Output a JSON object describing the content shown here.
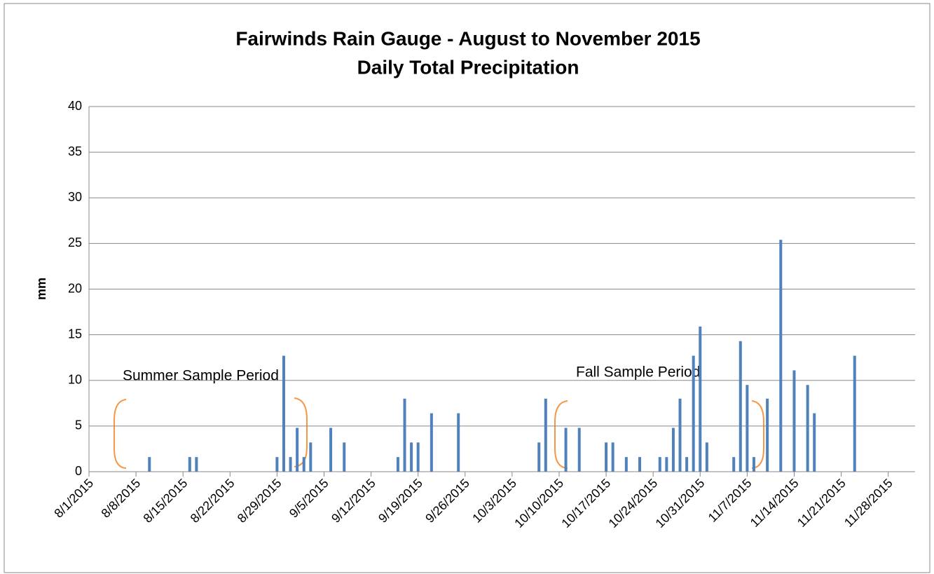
{
  "chart_data": {
    "type": "bar",
    "title": "Fairwinds Rain Gauge - August to November 2015",
    "subtitle": "Daily Total Precipitation",
    "y_label": "mm",
    "annotations": [
      "Summer Sample Period",
      "Fall Sample Period"
    ],
    "x": [
      "8/10/2015",
      "8/16/2015",
      "8/17/2015",
      "8/29/2015",
      "8/30/2015",
      "8/31/2015",
      "9/1/2015",
      "9/2/2015",
      "9/3/2015",
      "9/6/2015",
      "9/8/2015",
      "9/16/2015",
      "9/17/2015",
      "9/18/2015",
      "9/19/2015",
      "9/21/2015",
      "9/25/2015",
      "10/7/2015",
      "10/8/2015",
      "10/11/2015",
      "10/13/2015",
      "10/17/2015",
      "10/18/2015",
      "10/20/2015",
      "10/22/2015",
      "10/25/2015",
      "10/26/2015",
      "10/27/2015",
      "10/28/2015",
      "10/29/2015",
      "10/30/2015",
      "10/31/2015",
      "11/1/2015",
      "11/5/2015",
      "11/6/2015",
      "11/7/2015",
      "11/8/2015",
      "11/10/2015",
      "11/12/2015",
      "11/14/2015",
      "11/16/2015",
      "11/17/2015",
      "11/23/2015"
    ],
    "values": [
      1.6,
      1.6,
      1.6,
      1.6,
      12.7,
      1.6,
      4.8,
      1.6,
      3.2,
      4.8,
      3.2,
      1.6,
      8,
      3.2,
      3.2,
      6.4,
      6.4,
      3.2,
      8,
      4.8,
      4.8,
      3.2,
      3.2,
      1.6,
      1.6,
      1.6,
      1.6,
      4.8,
      8,
      1.6,
      12.7,
      15.9,
      3.2,
      1.6,
      14.3,
      9.5,
      1.6,
      8,
      25.4,
      11.1,
      9.5,
      6.4,
      12.7
    ],
    "color": "#4f81bd",
    "xlim": [
      "8/1/2015",
      "12/2/2015"
    ],
    "xticks": [
      "8/1/2015",
      "8/8/2015",
      "8/15/2015",
      "8/22/2015",
      "8/29/2015",
      "9/5/2015",
      "9/12/2015",
      "9/19/2015",
      "9/26/2015",
      "10/3/2015",
      "10/10/2015",
      "10/17/2015",
      "10/24/2015",
      "10/31/2015",
      "11/7/2015",
      "11/14/2015",
      "11/21/2015",
      "11/28/2015"
    ],
    "ylim": [
      0,
      40
    ],
    "yticks": [
      0,
      5,
      10,
      15,
      20,
      25,
      30,
      35,
      40
    ],
    "grid": true
  }
}
